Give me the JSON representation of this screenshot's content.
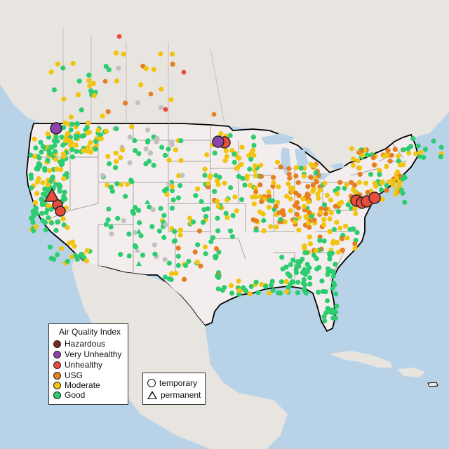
{
  "colors": {
    "hazardous": "#7e2b1f",
    "very_unhealthy": "#8e44ad",
    "unhealthy": "#e74c3c",
    "usg": "#e67e22",
    "moderate": "#f1c40f",
    "good": "#2ecc71",
    "no_data": "#c0c0c0",
    "water": "#b8d3e8",
    "land_us": "#f4eded",
    "land_other": "#e8e4e0"
  },
  "aqi_legend": {
    "title": "Air Quality Index",
    "items": [
      {
        "label": "Hazardous",
        "color": "#7e2b1f"
      },
      {
        "label": "Very Unhealthy",
        "color": "#8e44ad"
      },
      {
        "label": "Unhealthy",
        "color": "#e74c3c"
      },
      {
        "label": "USG",
        "color": "#e67e22"
      },
      {
        "label": "Moderate",
        "color": "#f1c40f"
      },
      {
        "label": "Good",
        "color": "#2ecc71"
      }
    ]
  },
  "type_legend": {
    "items": [
      {
        "label": "temporary",
        "shape": "circle"
      },
      {
        "label": "permanent",
        "shape": "triangle"
      }
    ]
  },
  "highlight_stations": [
    {
      "id": "wa-very-unhealthy",
      "category": "very_unhealthy",
      "type": "temporary"
    },
    {
      "id": "nd-very-unhealthy",
      "category": "very_unhealthy",
      "type": "temporary"
    },
    {
      "id": "nd-unhealthy",
      "category": "unhealthy",
      "type": "temporary"
    },
    {
      "id": "ca-unhealthy-permanent",
      "category": "unhealthy",
      "type": "permanent"
    },
    {
      "id": "ca-unhealthy-1",
      "category": "unhealthy",
      "type": "temporary"
    },
    {
      "id": "ca-unhealthy-2",
      "category": "unhealthy",
      "type": "temporary"
    },
    {
      "id": "midatlantic-unhealthy-1",
      "category": "unhealthy",
      "type": "temporary"
    },
    {
      "id": "midatlantic-unhealthy-2",
      "category": "unhealthy",
      "type": "temporary"
    },
    {
      "id": "midatlantic-unhealthy-3",
      "category": "unhealthy",
      "type": "temporary"
    },
    {
      "id": "midatlantic-unhealthy-4",
      "category": "unhealthy",
      "type": "temporary"
    }
  ]
}
